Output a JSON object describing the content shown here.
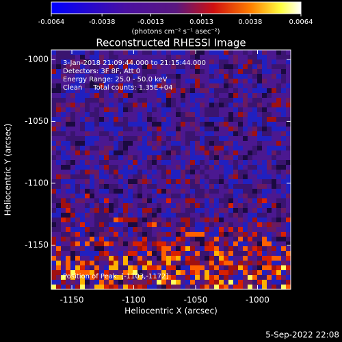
{
  "chart_data": {
    "type": "heatmap",
    "title": "Reconstructed RHESSI Image",
    "xlabel": "Heliocentric X (arcsec)",
    "ylabel": "Heliocentric Y (arcsec)",
    "xlim": [
      -1166.6,
      -973.2
    ],
    "ylim": [
      -1185.7,
      -992.3
    ],
    "xticks": [
      -1150,
      -1100,
      -1050,
      -1000
    ],
    "yticks": [
      -1150,
      -1100,
      -1050,
      -1000
    ],
    "colorbar": {
      "label": "(photons cm⁻² s⁻¹ asec⁻²)",
      "lim": [
        -0.0064,
        0.0064
      ],
      "ticks": [
        -0.0064,
        -0.0038,
        -0.0013,
        0.0013,
        0.0038,
        0.0064
      ]
    },
    "annotations": [
      "3-Jan-2018 21:09:44.000 to 21:15:44.000",
      "Detectors: 3F 8F, Att 0",
      "Energy Range: 25.0 - 50.0 keV",
      "Clean     Total counts: 1.35E+04",
      "Position of Peak: [-1103,-1172]"
    ],
    "footer": "5-Sep-2022 22:08"
  }
}
